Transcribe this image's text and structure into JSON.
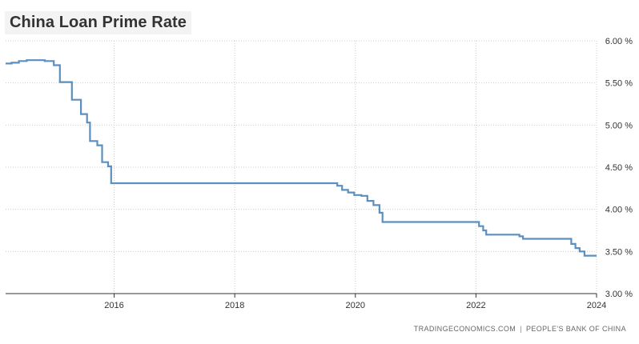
{
  "header": {
    "title": "China Loan Prime Rate"
  },
  "footer": {
    "source_site": "TRADINGECONOMICS.COM",
    "separator": "|",
    "source_org": "PEOPLE'S BANK OF CHINA"
  },
  "colors": {
    "line": "#5b8fbf",
    "grid": "#cccccc",
    "axis": "#333333",
    "text": "#333333"
  },
  "chart_data": {
    "type": "line",
    "title": "China Loan Prime Rate",
    "xlabel": "",
    "ylabel": "",
    "x_ticks": [
      "2016",
      "2018",
      "2020",
      "2022",
      "2024"
    ],
    "y_ticks": [
      "3.00 %",
      "3.50 %",
      "4.00 %",
      "4.50 %",
      "5.00 %",
      "5.50 %",
      "6.00 %"
    ],
    "xlim": [
      2014.2,
      2024.0
    ],
    "ylim": [
      3.0,
      6.0
    ],
    "grid": true,
    "y_axis_position": "right",
    "series": [
      {
        "step": true,
        "points": [
          [
            2014.2,
            5.73
          ],
          [
            2014.3,
            5.74
          ],
          [
            2014.42,
            5.76
          ],
          [
            2014.55,
            5.77
          ],
          [
            2014.85,
            5.76
          ],
          [
            2015.0,
            5.71
          ],
          [
            2015.1,
            5.51
          ],
          [
            2015.3,
            5.3
          ],
          [
            2015.45,
            5.13
          ],
          [
            2015.55,
            5.03
          ],
          [
            2015.6,
            4.81
          ],
          [
            2015.72,
            4.76
          ],
          [
            2015.8,
            4.56
          ],
          [
            2015.9,
            4.51
          ],
          [
            2015.95,
            4.31
          ],
          [
            2018.3,
            4.31
          ],
          [
            2018.35,
            4.31
          ],
          [
            2019.65,
            4.31
          ],
          [
            2019.7,
            4.28
          ],
          [
            2019.78,
            4.23
          ],
          [
            2019.88,
            4.2
          ],
          [
            2019.98,
            4.17
          ],
          [
            2020.1,
            4.16
          ],
          [
            2020.2,
            4.1
          ],
          [
            2020.3,
            4.05
          ],
          [
            2020.4,
            3.96
          ],
          [
            2020.45,
            3.85
          ],
          [
            2021.95,
            3.85
          ],
          [
            2022.05,
            3.8
          ],
          [
            2022.12,
            3.75
          ],
          [
            2022.17,
            3.7
          ],
          [
            2022.68,
            3.7
          ],
          [
            2022.72,
            3.68
          ],
          [
            2022.78,
            3.65
          ],
          [
            2023.48,
            3.65
          ],
          [
            2023.58,
            3.59
          ],
          [
            2023.65,
            3.54
          ],
          [
            2023.72,
            3.5
          ],
          [
            2023.8,
            3.45
          ],
          [
            2024.0,
            3.45
          ]
        ]
      }
    ]
  }
}
